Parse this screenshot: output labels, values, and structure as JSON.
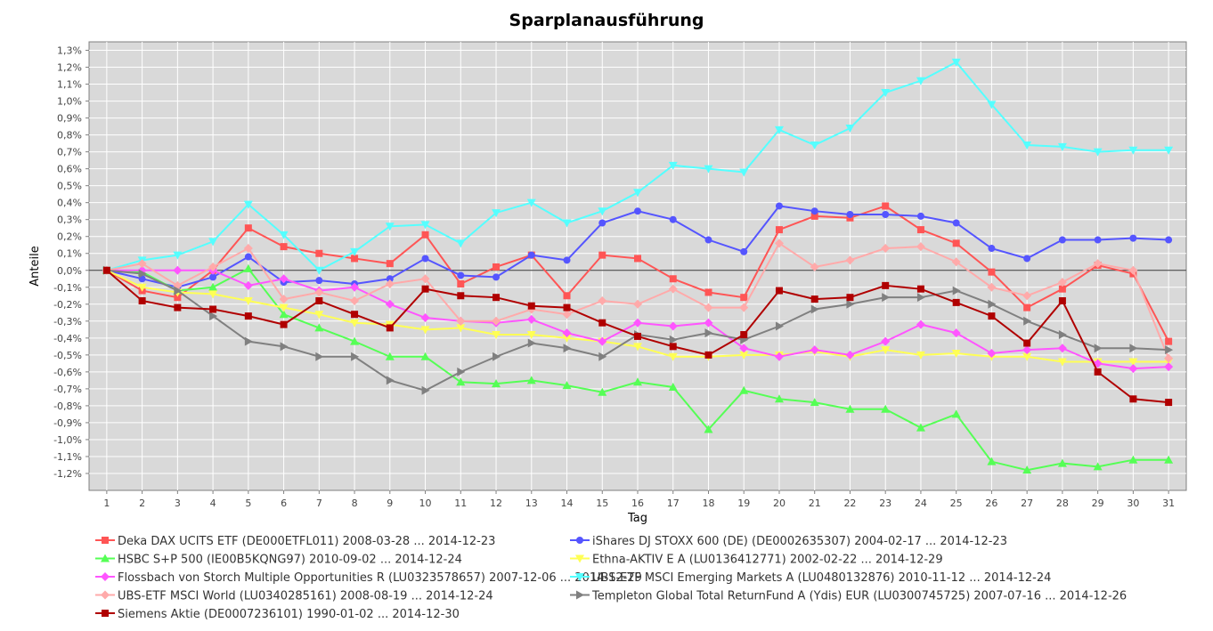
{
  "chart_data": {
    "type": "line",
    "title": "Sparplanausführung",
    "xlabel": "Tag",
    "ylabel": "Anteile",
    "xlim": [
      0.5,
      31.5
    ],
    "ylim": [
      -1.3,
      1.35
    ],
    "yticks": [
      1.3,
      1.2,
      1.1,
      1.0,
      0.9,
      0.8,
      0.7,
      0.6,
      0.5,
      0.4,
      0.3,
      0.2,
      0.1,
      0.0,
      -0.1,
      -0.2,
      -0.3,
      -0.4,
      -0.5,
      -0.6,
      -0.7,
      -0.8,
      -0.9,
      -1.0,
      -1.1,
      -1.2
    ],
    "ytick_labels": [
      "1,3%",
      "1,2%",
      "1,1%",
      "1,0%",
      "0,9%",
      "0,8%",
      "0,7%",
      "0,6%",
      "0,5%",
      "0,4%",
      "0,3%",
      "0,2%",
      "0,1%",
      "0,0%",
      "-0,1%",
      "-0,2%",
      "-0,3%",
      "-0,4%",
      "-0,5%",
      "-0,6%",
      "-0,7%",
      "-0,8%",
      "-0,9%",
      "-1,0%",
      "-1,1%",
      "-1,2%"
    ],
    "x": [
      1,
      2,
      3,
      4,
      5,
      6,
      7,
      8,
      9,
      10,
      11,
      12,
      13,
      14,
      15,
      16,
      17,
      18,
      19,
      20,
      21,
      22,
      23,
      24,
      25,
      26,
      27,
      28,
      29,
      30,
      31
    ],
    "x_labels": [
      "1",
      "2",
      "3",
      "4",
      "5",
      "6",
      "7",
      "8",
      "9",
      "10",
      "11",
      "12",
      "13",
      "14",
      "15",
      "16",
      "17",
      "18",
      "19",
      "20",
      "21",
      "22",
      "23",
      "24",
      "25",
      "26",
      "27",
      "28",
      "29",
      "30",
      "31"
    ],
    "grid": true,
    "legend_position": "bottom",
    "series": [
      {
        "name": "Deka DAX UCITS ETF (DE000ETFL011)",
        "range": "2008-03-28 ... 2014-12-23",
        "color": "#ff5555",
        "marker": "square",
        "values": [
          0.0,
          -0.12,
          -0.16,
          0.0,
          0.25,
          0.14,
          0.1,
          0.07,
          0.04,
          0.21,
          -0.08,
          0.02,
          0.09,
          -0.15,
          0.09,
          0.07,
          -0.05,
          -0.13,
          -0.16,
          0.24,
          0.32,
          0.31,
          0.38,
          0.24,
          0.16,
          -0.01,
          -0.22,
          -0.11,
          0.03,
          -0.02,
          -0.42
        ]
      },
      {
        "name": "iShares DJ STOXX 600 (DE) (DE0002635307)",
        "range": "2004-02-17 ... 2014-12-23",
        "color": "#5555ff",
        "marker": "circle",
        "values": [
          0.0,
          -0.05,
          -0.1,
          -0.04,
          0.08,
          -0.07,
          -0.06,
          -0.08,
          -0.05,
          0.07,
          -0.03,
          -0.04,
          0.09,
          0.06,
          0.28,
          0.35,
          0.3,
          0.18,
          0.11,
          0.38,
          0.35,
          0.33,
          0.33,
          0.32,
          0.28,
          0.13,
          0.07,
          0.18,
          0.18,
          0.19,
          0.18
        ]
      },
      {
        "name": "HSBC S+P 500 (IE00B5KQNG97)",
        "range": "2010-09-02 ... 2014-12-24",
        "color": "#55ff55",
        "marker": "triangle-up",
        "values": [
          0.0,
          -0.01,
          -0.12,
          -0.1,
          0.01,
          -0.26,
          -0.34,
          -0.42,
          -0.51,
          -0.51,
          -0.66,
          -0.67,
          -0.65,
          -0.68,
          -0.72,
          -0.66,
          -0.69,
          -0.94,
          -0.71,
          -0.76,
          -0.78,
          -0.82,
          -0.82,
          -0.93,
          -0.85,
          -1.13,
          -1.18,
          -1.14,
          -1.16,
          -1.12,
          -1.12
        ]
      },
      {
        "name": "Ethna-AKTIV E A (LU0136412771)",
        "range": "2002-02-22 ... 2014-12-29",
        "color": "#ffff55",
        "marker": "triangle-down",
        "values": [
          0.0,
          -0.1,
          -0.13,
          -0.14,
          -0.18,
          -0.22,
          -0.26,
          -0.31,
          -0.32,
          -0.35,
          -0.34,
          -0.38,
          -0.38,
          -0.4,
          -0.42,
          -0.45,
          -0.51,
          -0.51,
          -0.5,
          -0.5,
          -0.48,
          -0.51,
          -0.47,
          -0.5,
          -0.49,
          -0.51,
          -0.51,
          -0.54,
          -0.54,
          -0.54,
          -0.54
        ]
      },
      {
        "name": "Flossbach von Storch Multiple Opportunities R (LU0323578657)",
        "range": "2007-12-06 ... 2014-12-29",
        "color": "#ff55ff",
        "marker": "diamond",
        "values": [
          0.0,
          0.0,
          0.0,
          0.0,
          -0.09,
          -0.05,
          -0.12,
          -0.1,
          -0.2,
          -0.28,
          -0.3,
          -0.31,
          -0.29,
          -0.37,
          -0.42,
          -0.31,
          -0.33,
          -0.31,
          -0.46,
          -0.51,
          -0.47,
          -0.5,
          -0.42,
          -0.32,
          -0.37,
          -0.49,
          -0.47,
          -0.46,
          -0.55,
          -0.58,
          -0.57
        ]
      },
      {
        "name": "UBS-ETF MSCI Emerging Markets A (LU0480132876)",
        "range": "2010-11-12 ... 2014-12-24",
        "color": "#55ffff",
        "marker": "triangle-down",
        "values": [
          0.0,
          0.06,
          0.09,
          0.17,
          0.39,
          0.21,
          0.0,
          0.11,
          0.26,
          0.27,
          0.16,
          0.34,
          0.4,
          0.28,
          0.35,
          0.46,
          0.62,
          0.6,
          0.58,
          0.83,
          0.74,
          0.84,
          1.05,
          1.12,
          1.23,
          0.98,
          0.74,
          0.73,
          0.7,
          0.71,
          0.71
        ]
      },
      {
        "name": "UBS-ETF MSCI World (LU0340285161)",
        "range": "2008-08-19 ... 2014-12-24",
        "color": "#ffaaaa",
        "marker": "diamond",
        "values": [
          0.0,
          0.04,
          -0.09,
          0.02,
          0.13,
          -0.17,
          -0.13,
          -0.18,
          -0.08,
          -0.05,
          -0.3,
          -0.3,
          -0.23,
          -0.26,
          -0.18,
          -0.2,
          -0.11,
          -0.22,
          -0.22,
          0.16,
          0.02,
          0.06,
          0.13,
          0.14,
          0.05,
          -0.1,
          -0.15,
          -0.07,
          0.04,
          0.0,
          -0.52
        ]
      },
      {
        "name": "Templeton Global Total ReturnFund A (Ydis) EUR (LU0300745725)",
        "range": "2007-07-16 ... 2014-12-26",
        "color": "#808080",
        "marker": "triangle-right",
        "values": [
          0.0,
          -0.02,
          -0.12,
          -0.27,
          -0.42,
          -0.45,
          -0.51,
          -0.51,
          -0.65,
          -0.71,
          -0.6,
          -0.51,
          -0.43,
          -0.46,
          -0.51,
          -0.38,
          -0.41,
          -0.37,
          -0.41,
          -0.33,
          -0.23,
          -0.2,
          -0.16,
          -0.16,
          -0.12,
          -0.2,
          -0.3,
          -0.38,
          -0.46,
          -0.46,
          -0.47
        ]
      },
      {
        "name": "Siemens Aktie (DE0007236101)",
        "range": "1990-01-02 ... 2014-12-30",
        "color": "#b00000",
        "marker": "square",
        "values": [
          0.0,
          -0.18,
          -0.22,
          -0.23,
          -0.27,
          -0.32,
          -0.18,
          -0.26,
          -0.34,
          -0.11,
          -0.15,
          -0.16,
          -0.21,
          -0.22,
          -0.31,
          -0.39,
          -0.45,
          -0.5,
          -0.38,
          -0.12,
          -0.17,
          -0.16,
          -0.09,
          -0.11,
          -0.19,
          -0.27,
          -0.43,
          -0.18,
          -0.6,
          -0.76,
          -0.78
        ]
      }
    ]
  }
}
